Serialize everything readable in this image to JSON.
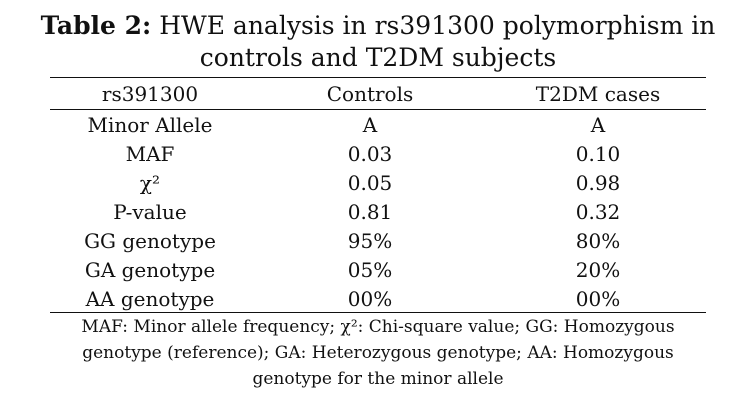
{
  "title": {
    "label": "Table 2:",
    "text_line1": " HWE analysis in rs391300 polymorphism in",
    "text_line2": "controls and T2DM subjects"
  },
  "table": {
    "headers": [
      "rs391300",
      "Controls",
      "T2DM cases"
    ],
    "rows": [
      [
        "Minor Allele",
        "A",
        "A"
      ],
      [
        "MAF",
        "0.03",
        "0.10"
      ],
      [
        "χ²",
        "0.05",
        "0.98"
      ],
      [
        "P-value",
        "0.81",
        "0.32"
      ],
      [
        "GG genotype",
        "95%",
        "80%"
      ],
      [
        "GA genotype",
        "05%",
        "20%"
      ],
      [
        "AA genotype",
        "00%",
        "00%"
      ]
    ]
  },
  "footnote": {
    "line1": "MAF: Minor allele frequency; χ²: Chi-square value; GG: Homozygous",
    "line2": "genotype (reference); GA: Heterozygous genotype; AA: Homozygous",
    "line3": "genotype for the minor allele"
  }
}
